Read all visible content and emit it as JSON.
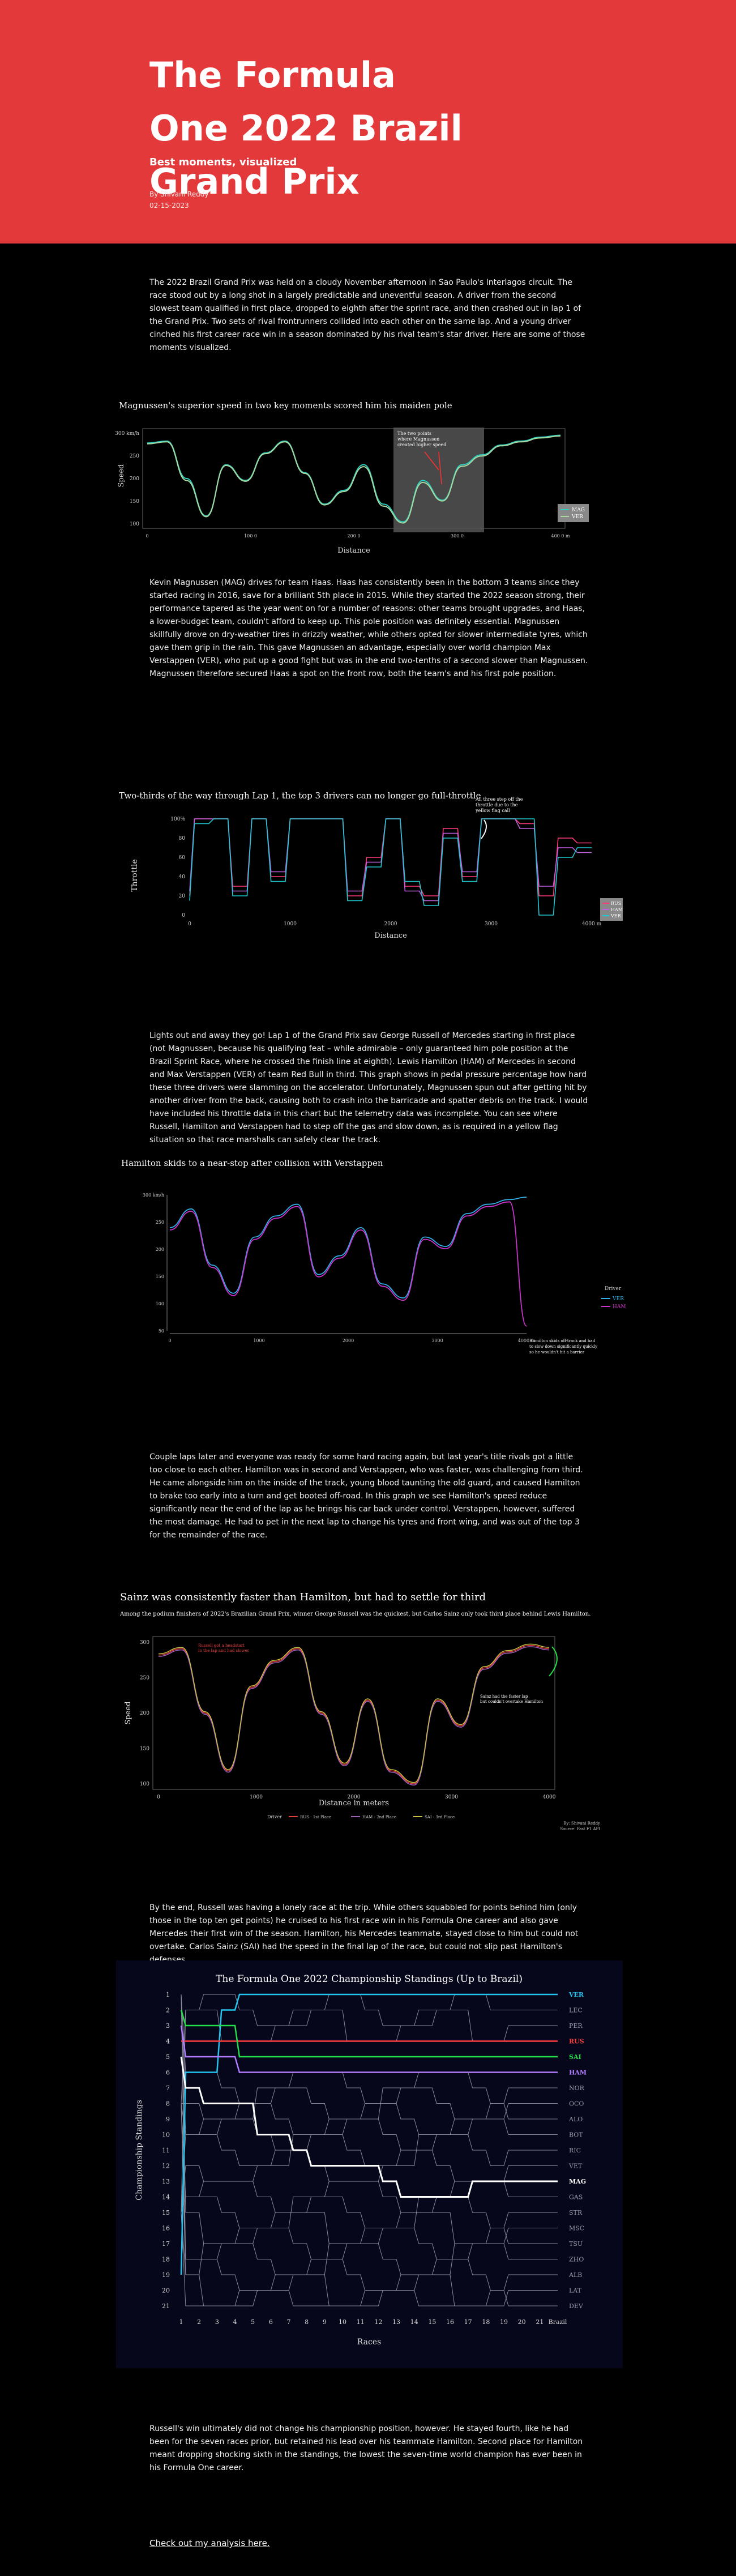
{
  "hero": {
    "title": "The Formula One 2022 Brazil Grand Prix",
    "subtitle": "Best moments, visualized",
    "author": "By Shivani Reddy",
    "date": "02-15-2023"
  },
  "paragraphs": {
    "intro": "The 2022 Brazil Grand Prix was held on a cloudy November afternoon in Sao Paulo's Interlagos circuit. The race stood out by a long shot in a largely predictable and uneventful season. A driver from the second slowest team qualified in first place, dropped to eighth after the sprint race, and then crashed out in lap 1 of the Grand Prix. Two sets of rival frontrunners collided into each other on the same lap. And a young driver cinched his first career race win in a season dominated by his rival team's star driver. Here are some of those moments visualized.",
    "magnussen": "Kevin Magnussen (MAG) drives for team Haas. Haas has consistently been in the bottom 3 teams since they started racing in 2016, save for a brilliant 5th place in 2015. While they started the 2022 season strong, their performance tapered as the year went on for a number of reasons: other teams brought upgrades, and Haas, a lower-budget team, couldn't afford to keep up. This pole position was definitely essential. Magnussen skillfully drove on dry-weather tires in drizzly weather, while others opted for slower intermediate tyres, which gave them grip in the rain. This gave Magnussen an advantage, especially over world champion Max Verstappen (VER), who put up a good fight but was in the end two-tenths of a second slower than Magnussen. Magnussen therefore secured Haas a spot on the front row, both the team's and his first pole position.",
    "lap1": "Lights out and away they go! Lap 1 of the Grand Prix saw George Russell of Mercedes starting in first place (not Magnussen, because his qualifying feat – while admirable – only guaranteed him pole position at the Brazil Sprint Race, where he crossed the finish line at eighth). Lewis Hamilton (HAM) of Mercedes in second and Max Verstappen (VER) of team Red Bull in third. This graph shows in pedal pressure percentage how hard these three drivers were slamming on the accelerator. Unfortunately, Magnussen spun out after getting hit by another driver from the back, causing both to crash into the barricade and spatter debris on the track. I would have included his throttle data in this chart but the telemetry data was incomplete. You can see where Russell, Hamilton and Verstappen had to step off the gas and slow down, as is required in a yellow flag situation so that race marshalls can safely clear the track.",
    "hamilton": "Couple laps later and everyone was ready for some hard racing again, but last year's title rivals got a little too close to each other. Hamilton was in second and Verstappen, who was faster, was challenging from third. He came alongside him on the inside of the track, young blood taunting the old guard, and caused Hamilton to brake too early into a turn and get booted off-road. In this graph we see Hamilton's speed reduce significantly near the end of the lap as he brings his car back under control. Verstappen, however, suffered the most damage. He had to pet in the next lap to change his tyres and front wing, and was out of the top 3 for the remainder of the race.",
    "russell": "By the end, Russell was having a lonely race at the trip. While others squabbled for points behind him (only those in the top ten get points) he cruised to his first race win in his Formula One career and also gave Mercedes their first win of the season. Hamilton, his Mercedes teammate, stayed close to him but could not overtake. Carlos Sainz (SAI) had the speed in the final lap of the race, but could not slip past Hamilton's defenses.",
    "closing": "Russell's win ultimately did not change his championship position, however. He stayed fourth, like he had been for the seven races prior, but retained his lead over his teammate Hamilton. Second place for Hamilton meant dropping shocking sixth in the standings, the lowest the seven-time world champion has ever been in his Formula One career."
  },
  "link_text": "Check out my analysis here.",
  "charts": {
    "c1": {
      "title": "Magnussen's superior speed in two key moments scored him his maiden pole",
      "xlabel": "Distance",
      "ylabel": "Speed",
      "yticks": [
        "300 km/h",
        "250",
        "200",
        "150",
        "100"
      ],
      "xticks": [
        "0",
        "100 0",
        "200 0",
        "300 0",
        "400 0 m"
      ],
      "annotation": [
        "The two points",
        "where Magnussen",
        "created higher speed"
      ],
      "legend": [
        "MAG",
        "VER"
      ]
    },
    "c2": {
      "title": "Two-thirds of the way through Lap 1, the top 3 drivers can no longer go full-throttle",
      "xlabel": "Distance",
      "ylabel": "Throttle",
      "yticks": [
        "100%",
        "80",
        "60",
        "40",
        "20",
        "0"
      ],
      "xticks": [
        "0",
        "1000",
        "2000",
        "3000",
        "4000 m"
      ],
      "annotation": [
        "All three step off the",
        "throttle due to the",
        "yellow flag call"
      ],
      "legend": [
        "RUS",
        "HAM",
        "VER"
      ]
    },
    "c3": {
      "title": "Hamilton skids to a near-stop after collision with Verstappen",
      "yticks": [
        "300 km/h",
        "250",
        "200",
        "150",
        "100",
        "50"
      ],
      "xticks": [
        "0",
        "1000",
        "2000",
        "3000",
        "4000 m"
      ],
      "annotation": [
        "Hamilton skids off-track and had",
        "to slow down significantly quickly",
        "so he wouldn't hit a barrier"
      ],
      "legend_title": "Driver",
      "legend": [
        "VER",
        "HAM"
      ]
    },
    "c4": {
      "title": "Sainz was consistently faster than Hamilton, but had to settle for third",
      "subtitle": "Among the podium finishers of 2022's Brazilian Grand Prix, winner George Russell was the quickest, but Carlos Sainz only took third place behind Lewis Hamilton.",
      "xlabel": "Distance in meters",
      "ylabel": "Speed",
      "yticks": [
        "300",
        "250",
        "200",
        "150",
        "100"
      ],
      "xticks": [
        "0",
        "1000",
        "2000",
        "3000",
        "4000"
      ],
      "annotation_left": [
        "Russell got a headstart",
        "in the lap and had slower"
      ],
      "annotation_right": [
        "Sainz had the faster lap",
        "but couldn't overtake Hamilton"
      ],
      "legend_title": "Driver",
      "legend": [
        "RUS - 1st Place",
        "HAM - 2nd Place",
        "SAI - 3rd Place"
      ],
      "credit": [
        "By: Shivani Reddy",
        "Source: Fast F1 API"
      ]
    },
    "c5": {
      "title": "The Formula One 2022 Championship Standings (Up to Brazil)",
      "xlabel": "Races",
      "ylabel": "Championship Standings",
      "yticks": [
        "1",
        "2",
        "3",
        "4",
        "5",
        "6",
        "7",
        "8",
        "9",
        "10",
        "11",
        "12",
        "13",
        "14",
        "15",
        "16",
        "17",
        "18",
        "19",
        "20",
        "21"
      ],
      "xticks": [
        "1",
        "2",
        "3",
        "4",
        "5",
        "6",
        "7",
        "8",
        "9",
        "10",
        "11",
        "12",
        "13",
        "14",
        "15",
        "16",
        "17",
        "18",
        "19",
        "20",
        "21"
      ],
      "xlast": "Brazil",
      "drivers": [
        "VER",
        "LEC",
        "PER",
        "RUS",
        "SAI",
        "HAM",
        "NOR",
        "OCO",
        "ALO",
        "BOT",
        "RIC",
        "VET",
        "MAG",
        "GAS",
        "STR",
        "MSC",
        "TSU",
        "ZHO",
        "ALB",
        "LAT",
        "DEV"
      ],
      "highlight_colors": {
        "VER": "#22c4f0",
        "RUS": "#ff3b3b",
        "SAI": "#22e04a",
        "HAM": "#b37cff",
        "MAG": "#ffffff"
      }
    }
  },
  "chart_data": [
    {
      "type": "line",
      "title": "Magnussen's superior speed in two key moments scored him his maiden pole",
      "xlabel": "Distance",
      "ylabel": "Speed",
      "x": [
        0,
        200,
        400,
        600,
        800,
        1000,
        1200,
        1400,
        1600,
        1800,
        2000,
        2200,
        2400,
        2600,
        2800,
        3000,
        3200,
        3400,
        3600,
        3800,
        4000,
        4200
      ],
      "series": [
        {
          "name": "MAG",
          "values": [
            295,
            300,
            205,
            110,
            240,
            200,
            270,
            300,
            220,
            140,
            175,
            240,
            140,
            95,
            200,
            150,
            240,
            265,
            290,
            300,
            310,
            315
          ]
        },
        {
          "name": "VER",
          "values": [
            293,
            298,
            200,
            108,
            238,
            198,
            268,
            298,
            218,
            138,
            172,
            235,
            135,
            92,
            195,
            148,
            236,
            262,
            288,
            298,
            308,
            313
          ]
        }
      ],
      "ylim": [
        90,
        320
      ]
    },
    {
      "type": "line",
      "title": "Two-thirds of the way through Lap 1, the top 3 drivers can no longer go full-throttle",
      "xlabel": "Distance",
      "ylabel": "Throttle",
      "x": [
        0,
        200,
        400,
        600,
        800,
        1000,
        1200,
        1400,
        1600,
        1800,
        2000,
        2200,
        2400,
        2600,
        2800,
        3000,
        3200,
        3400,
        3600,
        3800,
        4000,
        4200
      ],
      "series": [
        {
          "name": "RUS",
          "values": [
            20,
            100,
            100,
            30,
            100,
            40,
            100,
            100,
            100,
            20,
            60,
            100,
            30,
            20,
            90,
            40,
            100,
            100,
            95,
            20,
            80,
            75
          ]
        },
        {
          "name": "HAM",
          "values": [
            25,
            100,
            100,
            25,
            100,
            45,
            100,
            100,
            100,
            25,
            55,
            100,
            25,
            15,
            85,
            45,
            100,
            100,
            90,
            30,
            70,
            65
          ]
        },
        {
          "name": "VER",
          "values": [
            15,
            95,
            100,
            20,
            100,
            35,
            100,
            100,
            100,
            15,
            50,
            100,
            35,
            10,
            80,
            35,
            100,
            100,
            100,
            0,
            60,
            70
          ]
        }
      ],
      "ylim": [
        0,
        100
      ]
    },
    {
      "type": "line",
      "title": "Hamilton skids to a near-stop after collision with Verstappen",
      "x": [
        0,
        250,
        500,
        750,
        1000,
        1250,
        1500,
        1750,
        2000,
        2250,
        2500,
        2750,
        3000,
        3250,
        3500,
        3750,
        4000,
        4200
      ],
      "series": [
        {
          "name": "VER",
          "values": [
            250,
            290,
            170,
            110,
            230,
            275,
            300,
            150,
            190,
            250,
            130,
            100,
            230,
            210,
            280,
            300,
            310,
            315
          ]
        },
        {
          "name": "HAM",
          "values": [
            245,
            285,
            165,
            105,
            225,
            270,
            295,
            145,
            185,
            245,
            125,
            95,
            225,
            205,
            275,
            295,
            305,
            40
          ]
        }
      ],
      "ylim": [
        30,
        320
      ]
    },
    {
      "type": "line",
      "title": "Sainz was consistently faster than Hamilton, but had to settle for third",
      "xlabel": "Distance in meters",
      "ylabel": "Speed",
      "x": [
        0,
        250,
        500,
        750,
        1000,
        1250,
        1500,
        1750,
        2000,
        2250,
        2500,
        2750,
        3000,
        3250,
        3500,
        3750,
        4000,
        4200
      ],
      "series": [
        {
          "name": "RUS - 1st Place",
          "values": [
            290,
            300,
            200,
            110,
            240,
            280,
            300,
            200,
            120,
            220,
            110,
            90,
            220,
            180,
            270,
            295,
            305,
            300
          ]
        },
        {
          "name": "HAM - 2nd Place",
          "values": [
            288,
            298,
            198,
            108,
            238,
            278,
            298,
            198,
            118,
            218,
            108,
            88,
            218,
            178,
            268,
            293,
            303,
            298
          ]
        },
        {
          "name": "SAI - 3rd Place",
          "values": [
            292,
            302,
            202,
            112,
            242,
            282,
            302,
            202,
            122,
            222,
            112,
            92,
            222,
            182,
            272,
            297,
            307,
            302
          ]
        }
      ],
      "ylim": [
        90,
        310
      ]
    },
    {
      "type": "line",
      "title": "The Formula One 2022 Championship Standings (Up to Brazil)",
      "xlabel": "Races",
      "ylabel": "Championship Standings",
      "x": [
        1,
        2,
        3,
        4,
        5,
        6,
        7,
        8,
        9,
        10,
        11,
        12,
        13,
        14,
        15,
        16,
        17,
        18,
        19,
        20,
        21
      ],
      "series": [
        {
          "name": "VER",
          "values": [
            19,
            6,
            6,
            2,
            1,
            1,
            1,
            1,
            1,
            1,
            1,
            1,
            1,
            1,
            1,
            1,
            1,
            1,
            1,
            1,
            1
          ]
        },
        {
          "name": "RUS",
          "values": [
            4,
            4,
            4,
            4,
            4,
            4,
            4,
            4,
            4,
            4,
            4,
            4,
            4,
            4,
            4,
            4,
            4,
            4,
            4,
            4,
            4
          ]
        },
        {
          "name": "SAI",
          "values": [
            2,
            3,
            3,
            3,
            5,
            5,
            5,
            5,
            5,
            5,
            5,
            5,
            5,
            5,
            5,
            5,
            5,
            5,
            5,
            5,
            5
          ]
        },
        {
          "name": "HAM",
          "values": [
            3,
            5,
            5,
            5,
            6,
            6,
            6,
            6,
            6,
            6,
            6,
            6,
            6,
            6,
            6,
            6,
            6,
            6,
            6,
            6,
            6
          ]
        },
        {
          "name": "MAG",
          "values": [
            5,
            7,
            8,
            8,
            8,
            10,
            10,
            11,
            12,
            12,
            12,
            12,
            13,
            14,
            14,
            14,
            14,
            13,
            13,
            13,
            13
          ]
        }
      ],
      "ylim": [
        21,
        1
      ]
    }
  ]
}
